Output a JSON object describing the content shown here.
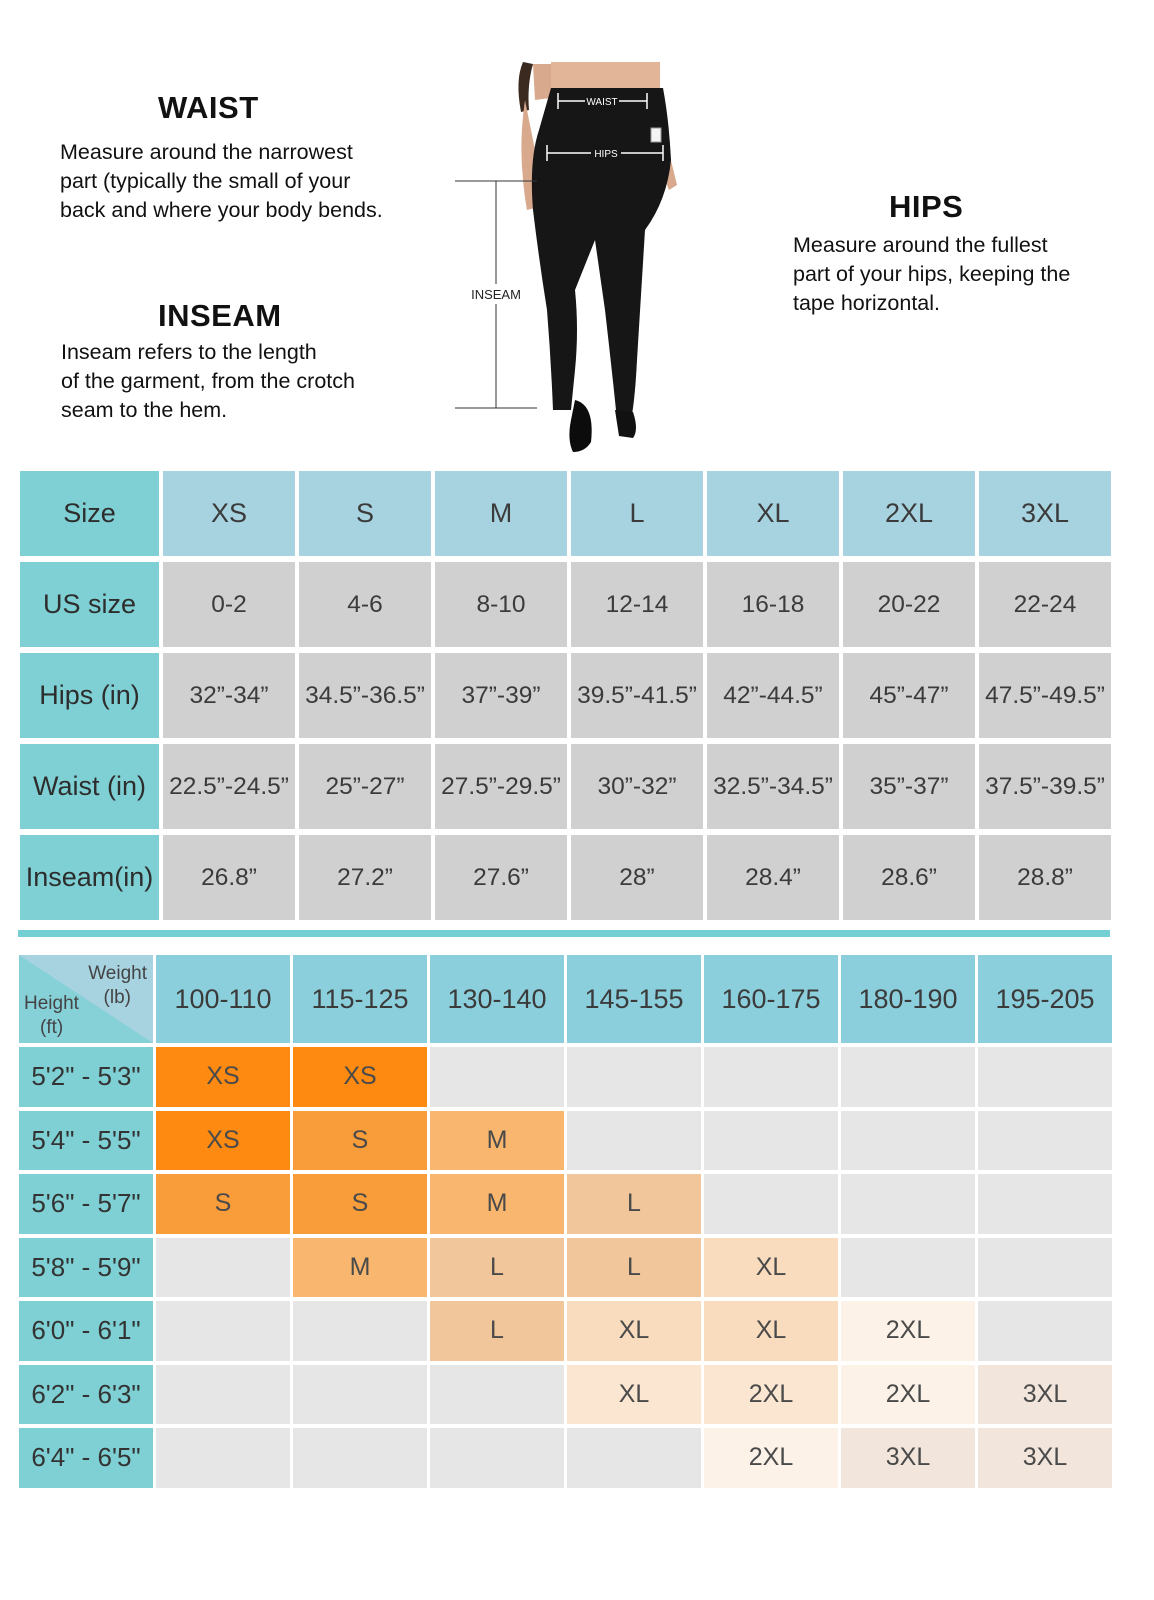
{
  "guide": {
    "waist": {
      "title": "WAIST",
      "text": "Measure around the narrowest\npart (typically the small of your\nback and where your body bends."
    },
    "inseam": {
      "title": "INSEAM",
      "text": "Inseam refers to the length\nof the garment, from the crotch\nseam to the hem."
    },
    "hips": {
      "title": "HIPS",
      "text": "Measure around the fullest\npart of your hips, keeping the\ntape horizontal."
    },
    "figure_labels": {
      "waist": "WAIST",
      "hips": "HIPS",
      "inseam": "INSEAM"
    }
  },
  "size_chart": {
    "header": {
      "label": "Size",
      "sizes": [
        "XS",
        "S",
        "M",
        "L",
        "XL",
        "2XL",
        "3XL"
      ]
    },
    "rows": [
      {
        "label": "US size",
        "values": [
          "0-2",
          "4-6",
          "8-10",
          "12-14",
          "16-18",
          "20-22",
          "22-24"
        ]
      },
      {
        "label": "Hips (in)",
        "values": [
          "32”-34”",
          "34.5”-36.5”",
          "37”-39”",
          "39.5”-41.5”",
          "42”-44.5”",
          "45”-47”",
          "47.5”-49.5”"
        ]
      },
      {
        "label": "Waist (in)",
        "values": [
          "22.5”-24.5”",
          "25”-27”",
          "27.5”-29.5”",
          "30”-32”",
          "32.5”-34.5”",
          "35”-37”",
          "37.5”-39.5”"
        ]
      },
      {
        "label": "Inseam(in)",
        "values": [
          "26.8”",
          "27.2”",
          "27.6”",
          "28”",
          "28.4”",
          "28.6”",
          "28.8”"
        ]
      }
    ]
  },
  "fit_chart": {
    "corner": {
      "weight": "Weight",
      "weight_unit": "(lb)",
      "height": "Height",
      "height_unit": "(ft)"
    },
    "weights": [
      "100-110",
      "115-125",
      "130-140",
      "145-155",
      "160-175",
      "180-190",
      "195-205"
    ],
    "rows": [
      {
        "height": "5'2\" - 5'3\"",
        "cells": [
          "XS",
          "XS",
          "",
          "",
          "",
          "",
          ""
        ]
      },
      {
        "height": "5'4\" - 5'5\"",
        "cells": [
          "XS",
          "S",
          "M",
          "",
          "",
          "",
          ""
        ]
      },
      {
        "height": "5'6\" - 5'7\"",
        "cells": [
          "S",
          "S",
          "M",
          "L",
          "",
          "",
          ""
        ]
      },
      {
        "height": "5'8\" - 5'9\"",
        "cells": [
          "",
          "M",
          "L",
          "L",
          "XL",
          "",
          ""
        ]
      },
      {
        "height": "6'0\" - 6'1\"",
        "cells": [
          "",
          "",
          "L",
          "XL",
          "XL",
          "2XL",
          ""
        ]
      },
      {
        "height": "6'2\" - 6'3\"",
        "cells": [
          "",
          "",
          "",
          "XL",
          "2XL",
          "2XL",
          "3XL"
        ]
      },
      {
        "height": "6'4\" - 6'5\"",
        "cells": [
          "",
          "",
          "",
          "",
          "2XL",
          "3XL",
          "3XL"
        ]
      }
    ],
    "shade_levels": [
      [
        1,
        1,
        0,
        0,
        0,
        0,
        0
      ],
      [
        1,
        2,
        3,
        0,
        0,
        0,
        0
      ],
      [
        2,
        2,
        3,
        4,
        0,
        0,
        0
      ],
      [
        0,
        3,
        4,
        4,
        5,
        0,
        0
      ],
      [
        0,
        0,
        4,
        5,
        5,
        7,
        0
      ],
      [
        0,
        0,
        0,
        6,
        6,
        7,
        8
      ],
      [
        0,
        0,
        0,
        0,
        7,
        8,
        8
      ]
    ],
    "shade_colors": [
      "#e6e6e6",
      "#ff8a12",
      "#f99c3a",
      "#f8b66e",
      "#f0c69a",
      "#f9dcbe",
      "#fbe6d2",
      "#fdf2e8",
      "#f2e5db"
    ]
  }
}
